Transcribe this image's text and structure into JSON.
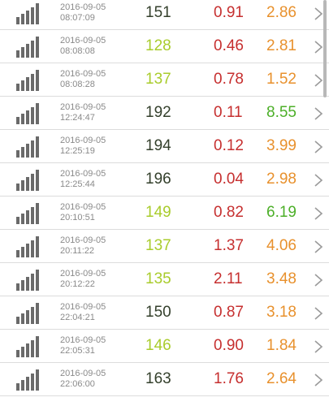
{
  "colors": {
    "green_dark": "#34402c",
    "green_light": "#a9cc2c",
    "red": "#c62f2f",
    "orange": "#e8912d",
    "green_bright": "#4caf28"
  },
  "rows": [
    {
      "date": "2016-09-05",
      "time": "08:07:09",
      "v1": "151",
      "v1_color": "#34402c",
      "v2": "0.91",
      "v2_color": "#c62f2f",
      "v3": "2.86",
      "v3_color": "#e8912d",
      "icon": "signal-bars-icon"
    },
    {
      "date": "2016-09-05",
      "time": "08:08:08",
      "v1": "128",
      "v1_color": "#a9cc2c",
      "v2": "0.46",
      "v2_color": "#c62f2f",
      "v3": "2.81",
      "v3_color": "#e8912d",
      "icon": "signal-bars-icon"
    },
    {
      "date": "2016-09-05",
      "time": "08:08:28",
      "v1": "137",
      "v1_color": "#a9cc2c",
      "v2": "0.78",
      "v2_color": "#c62f2f",
      "v3": "1.52",
      "v3_color": "#e8912d",
      "icon": "signal-bars-icon"
    },
    {
      "date": "2016-09-05",
      "time": "12:24:47",
      "v1": "192",
      "v1_color": "#34402c",
      "v2": "0.11",
      "v2_color": "#c62f2f",
      "v3": "8.55",
      "v3_color": "#4caf28",
      "icon": "signal-bars-icon"
    },
    {
      "date": "2016-09-05",
      "time": "12:25:19",
      "v1": "194",
      "v1_color": "#34402c",
      "v2": "0.12",
      "v2_color": "#c62f2f",
      "v3": "3.99",
      "v3_color": "#e8912d",
      "icon": "signal-bars-icon"
    },
    {
      "date": "2016-09-05",
      "time": "12:25:44",
      "v1": "196",
      "v1_color": "#34402c",
      "v2": "0.04",
      "v2_color": "#c62f2f",
      "v3": "2.98",
      "v3_color": "#e8912d",
      "icon": "signal-bars-icon"
    },
    {
      "date": "2016-09-05",
      "time": "20:10:51",
      "v1": "149",
      "v1_color": "#a9cc2c",
      "v2": "0.82",
      "v2_color": "#c62f2f",
      "v3": "6.19",
      "v3_color": "#4caf28",
      "icon": "signal-bars-icon"
    },
    {
      "date": "2016-09-05",
      "time": "20:11:22",
      "v1": "137",
      "v1_color": "#a9cc2c",
      "v2": "1.37",
      "v2_color": "#c62f2f",
      "v3": "4.06",
      "v3_color": "#e8912d",
      "icon": "signal-bars-icon"
    },
    {
      "date": "2016-09-05",
      "time": "20:12:22",
      "v1": "135",
      "v1_color": "#a9cc2c",
      "v2": "2.11",
      "v2_color": "#c62f2f",
      "v3": "3.48",
      "v3_color": "#e8912d",
      "icon": "signal-bars-icon"
    },
    {
      "date": "2016-09-05",
      "time": "22:04:21",
      "v1": "150",
      "v1_color": "#34402c",
      "v2": "0.87",
      "v2_color": "#c62f2f",
      "v3": "3.18",
      "v3_color": "#e8912d",
      "icon": "signal-bars-icon"
    },
    {
      "date": "2016-09-05",
      "time": "22:05:31",
      "v1": "146",
      "v1_color": "#a9cc2c",
      "v2": "0.90",
      "v2_color": "#c62f2f",
      "v3": "1.84",
      "v3_color": "#e8912d",
      "icon": "signal-bars-icon"
    },
    {
      "date": "2016-09-05",
      "time": "22:06:00",
      "v1": "163",
      "v1_color": "#34402c",
      "v2": "1.76",
      "v2_color": "#c62f2f",
      "v3": "2.64",
      "v3_color": "#e8912d",
      "icon": "signal-bars-icon"
    }
  ]
}
